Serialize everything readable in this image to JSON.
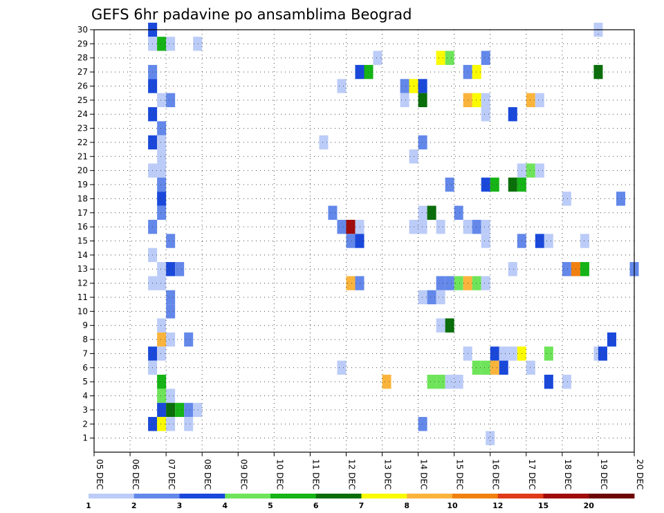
{
  "chart_data": {
    "type": "heatmap",
    "title": "GEFS 6hr padavine po ansamblima Beograd",
    "xlabel": "",
    "ylabel": "",
    "x_ticks": [
      "05 DEC",
      "06 DEC",
      "07 DEC",
      "08 DEC",
      "09 DEC",
      "10 DEC",
      "11 DEC",
      "12 DEC",
      "13 DEC",
      "14 DEC",
      "15 DEC",
      "16 DEC",
      "17 DEC",
      "18 DEC",
      "19 DEC",
      "20 DEC"
    ],
    "y_ticks": [
      "1",
      "2",
      "3",
      "4",
      "5",
      "6",
      "7",
      "8",
      "9",
      "10",
      "11",
      "12",
      "13",
      "14",
      "15",
      "16",
      "17",
      "18",
      "19",
      "20",
      "21",
      "22",
      "23",
      "24",
      "25",
      "26",
      "27",
      "28",
      "29",
      "30"
    ],
    "xlim": [
      0,
      15
    ],
    "ylim": [
      0,
      30
    ],
    "grid": true,
    "legend": {
      "position": "bottom",
      "colors": [
        "#bcccf8",
        "#6388ea",
        "#1a48da",
        "#6ee45a",
        "#16b416",
        "#0a6e0a",
        "#fafa00",
        "#fab43c",
        "#f08010",
        "#e03a18",
        "#a00c0c",
        "#6e0606"
      ],
      "labels": [
        "1",
        "2",
        "3",
        "4",
        "5",
        "6",
        "7",
        "8",
        "10",
        "12",
        "15",
        "20"
      ]
    },
    "cells": [
      [
        1.625,
        30,
        3
      ],
      [
        14,
        30,
        1
      ],
      [
        1.625,
        29,
        1
      ],
      [
        1.875,
        29,
        5
      ],
      [
        2.125,
        29,
        1
      ],
      [
        2.875,
        29,
        1
      ],
      [
        7.875,
        28,
        1
      ],
      [
        9.625,
        28,
        7
      ],
      [
        9.875,
        28,
        4
      ],
      [
        10.875,
        28,
        2
      ],
      [
        1.625,
        27,
        2
      ],
      [
        7.375,
        27,
        3
      ],
      [
        7.625,
        27,
        5
      ],
      [
        10.375,
        27,
        2
      ],
      [
        10.625,
        27,
        7
      ],
      [
        14,
        27,
        6
      ],
      [
        1.625,
        26,
        3
      ],
      [
        6.875,
        26,
        1
      ],
      [
        8.625,
        26,
        2
      ],
      [
        8.875,
        26,
        7
      ],
      [
        9.125,
        26,
        3
      ],
      [
        1.875,
        25,
        1
      ],
      [
        2.125,
        25,
        2
      ],
      [
        8.625,
        25,
        1
      ],
      [
        9.125,
        25,
        6
      ],
      [
        10.375,
        25,
        8
      ],
      [
        10.625,
        25,
        7
      ],
      [
        10.875,
        25,
        1
      ],
      [
        12.125,
        25,
        8
      ],
      [
        12.375,
        25,
        1
      ],
      [
        1.625,
        24,
        3
      ],
      [
        10.875,
        24,
        1
      ],
      [
        11.625,
        24,
        3
      ],
      [
        1.875,
        23,
        2
      ],
      [
        1.625,
        22,
        3
      ],
      [
        1.875,
        22,
        1
      ],
      [
        6.375,
        22,
        1
      ],
      [
        9.125,
        22,
        2
      ],
      [
        1.875,
        21,
        1
      ],
      [
        8.875,
        21,
        1
      ],
      [
        1.625,
        20,
        1
      ],
      [
        1.875,
        20,
        1
      ],
      [
        11.875,
        20,
        1
      ],
      [
        12.125,
        20,
        4
      ],
      [
        12.375,
        20,
        1
      ],
      [
        1.875,
        19,
        2
      ],
      [
        9.875,
        19,
        2
      ],
      [
        10.875,
        19,
        3
      ],
      [
        11.125,
        19,
        5
      ],
      [
        11.625,
        19,
        6
      ],
      [
        11.875,
        19,
        5
      ],
      [
        1.875,
        18,
        3
      ],
      [
        13.125,
        18,
        1
      ],
      [
        14.625,
        18,
        2
      ],
      [
        1.875,
        17,
        2
      ],
      [
        6.625,
        17,
        2
      ],
      [
        9.125,
        17,
        1
      ],
      [
        9.375,
        17,
        6
      ],
      [
        10.125,
        17,
        2
      ],
      [
        1.625,
        16,
        2
      ],
      [
        6.875,
        16,
        2
      ],
      [
        7.125,
        16,
        11
      ],
      [
        7.375,
        16,
        1
      ],
      [
        8.875,
        16,
        1
      ],
      [
        9.125,
        16,
        1
      ],
      [
        9.625,
        16,
        1
      ],
      [
        10.375,
        16,
        1
      ],
      [
        10.625,
        16,
        2
      ],
      [
        10.875,
        16,
        1
      ],
      [
        7.125,
        15,
        2
      ],
      [
        2.125,
        15,
        2
      ],
      [
        7.375,
        15,
        3
      ],
      [
        10.875,
        15,
        1
      ],
      [
        11.875,
        15,
        2
      ],
      [
        12.375,
        15,
        3
      ],
      [
        12.625,
        15,
        1
      ],
      [
        13.625,
        15,
        1
      ],
      [
        1.625,
        14,
        1
      ],
      [
        1.875,
        13,
        1
      ],
      [
        2.125,
        13,
        3
      ],
      [
        2.375,
        13,
        2
      ],
      [
        11.625,
        13,
        1
      ],
      [
        13.125,
        13,
        2
      ],
      [
        13.375,
        13,
        9
      ],
      [
        13.625,
        13,
        5
      ],
      [
        15,
        13,
        2
      ],
      [
        1.625,
        12,
        1
      ],
      [
        1.875,
        12,
        1
      ],
      [
        7.125,
        12,
        8
      ],
      [
        7.375,
        12,
        2
      ],
      [
        9.625,
        12,
        2
      ],
      [
        9.875,
        12,
        2
      ],
      [
        10.125,
        12,
        4
      ],
      [
        10.375,
        12,
        8
      ],
      [
        10.625,
        12,
        4
      ],
      [
        10.875,
        12,
        1
      ],
      [
        2.125,
        11,
        2
      ],
      [
        9.125,
        11,
        1
      ],
      [
        9.375,
        11,
        2
      ],
      [
        9.625,
        11,
        1
      ],
      [
        2.125,
        10,
        2
      ],
      [
        1.875,
        9,
        1
      ],
      [
        9.625,
        9,
        1
      ],
      [
        9.875,
        9,
        6
      ],
      [
        1.875,
        8,
        8
      ],
      [
        2.125,
        8,
        1
      ],
      [
        2.625,
        8,
        2
      ],
      [
        14.375,
        8,
        3
      ],
      [
        1.625,
        7,
        3
      ],
      [
        1.875,
        7,
        1
      ],
      [
        10.375,
        7,
        1
      ],
      [
        11.125,
        7,
        3
      ],
      [
        11.375,
        7,
        1
      ],
      [
        11.625,
        7,
        1
      ],
      [
        11.875,
        7,
        7
      ],
      [
        12.625,
        7,
        4
      ],
      [
        14,
        7,
        1
      ],
      [
        14.125,
        7,
        3
      ],
      [
        1.625,
        6,
        1
      ],
      [
        6.875,
        6,
        1
      ],
      [
        10.625,
        6,
        4
      ],
      [
        10.875,
        6,
        4
      ],
      [
        11.125,
        6,
        8
      ],
      [
        11.375,
        6,
        3
      ],
      [
        12.125,
        6,
        1
      ],
      [
        1.875,
        5,
        5
      ],
      [
        8.125,
        5,
        8
      ],
      [
        9.375,
        5,
        4
      ],
      [
        9.625,
        5,
        4
      ],
      [
        9.875,
        5,
        1
      ],
      [
        10.125,
        5,
        1
      ],
      [
        12.625,
        5,
        3
      ],
      [
        13.125,
        5,
        1
      ],
      [
        2.125,
        4,
        1
      ],
      [
        1.875,
        4,
        4
      ],
      [
        1.875,
        3,
        3
      ],
      [
        2.125,
        3,
        6
      ],
      [
        2.375,
        3,
        5
      ],
      [
        2.625,
        3,
        2
      ],
      [
        2.875,
        3,
        1
      ],
      [
        1.625,
        2,
        3
      ],
      [
        1.875,
        2,
        7
      ],
      [
        2.125,
        2,
        1
      ],
      [
        2.625,
        2,
        1
      ],
      [
        9.125,
        2,
        2
      ],
      [
        11,
        1,
        1
      ]
    ]
  }
}
